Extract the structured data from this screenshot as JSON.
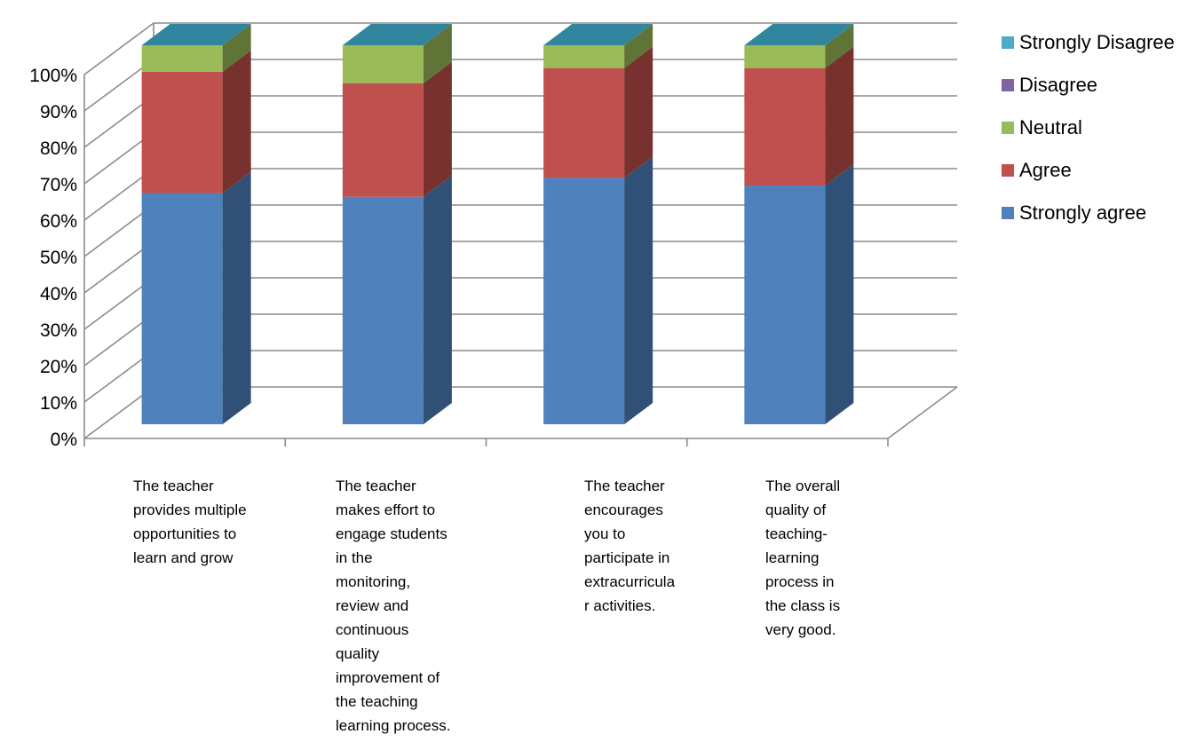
{
  "chart_data": {
    "type": "bar",
    "stacked": true,
    "three_d": true,
    "percent_stacked": true,
    "categories": [
      "The teacher provides multiple opportunities to learn and grow",
      "The teacher makes effort to engage students in the monitoring, review and continuous quality improvement of the teaching learning process.",
      "The teacher encourages you to participate in extracurricular activities.",
      "The overall quality of teaching-learning process in the class is very good."
    ],
    "category_label_lines": [
      [
        "The teacher",
        "provides multiple",
        "opportunities to",
        "learn and grow"
      ],
      [
        "The teacher",
        "makes effort to",
        "engage students",
        "in the",
        "monitoring,",
        "review and",
        "continuous",
        "quality",
        "improvement of",
        "the teaching",
        "learning process."
      ],
      [
        "The teacher",
        "encourages",
        "you to",
        "participate in",
        "extracurricula",
        "r activities."
      ],
      [
        "The overall",
        "quality of",
        "teaching-",
        "learning",
        "process in",
        "the class is",
        "very good."
      ]
    ],
    "series": [
      {
        "name": "Strongly agree",
        "color": "#4F81BD",
        "values": [
          61,
          60,
          65,
          63
        ]
      },
      {
        "name": "Agree",
        "color": "#C0504D",
        "values": [
          32,
          30,
          29,
          31
        ]
      },
      {
        "name": "Neutral",
        "color": "#9BBB59",
        "values": [
          7,
          10,
          6,
          6
        ]
      },
      {
        "name": "Disagree",
        "color": "#8064A2",
        "values": [
          0,
          0,
          0,
          0
        ]
      },
      {
        "name": "Strongly Disagree",
        "color": "#4BACC6",
        "values": [
          0,
          0,
          0,
          0
        ]
      }
    ],
    "legend_order": [
      "Strongly Disagree",
      "Disagree",
      "Neutral",
      "Agree",
      "Strongly agree"
    ],
    "y_ticks": [
      "0%",
      "10%",
      "20%",
      "30%",
      "40%",
      "50%",
      "60%",
      "70%",
      "80%",
      "90%",
      "100%"
    ],
    "ylim": [
      0,
      100
    ],
    "grid": true,
    "legend_position": "right",
    "title": "",
    "xlabel": "",
    "ylabel": ""
  }
}
